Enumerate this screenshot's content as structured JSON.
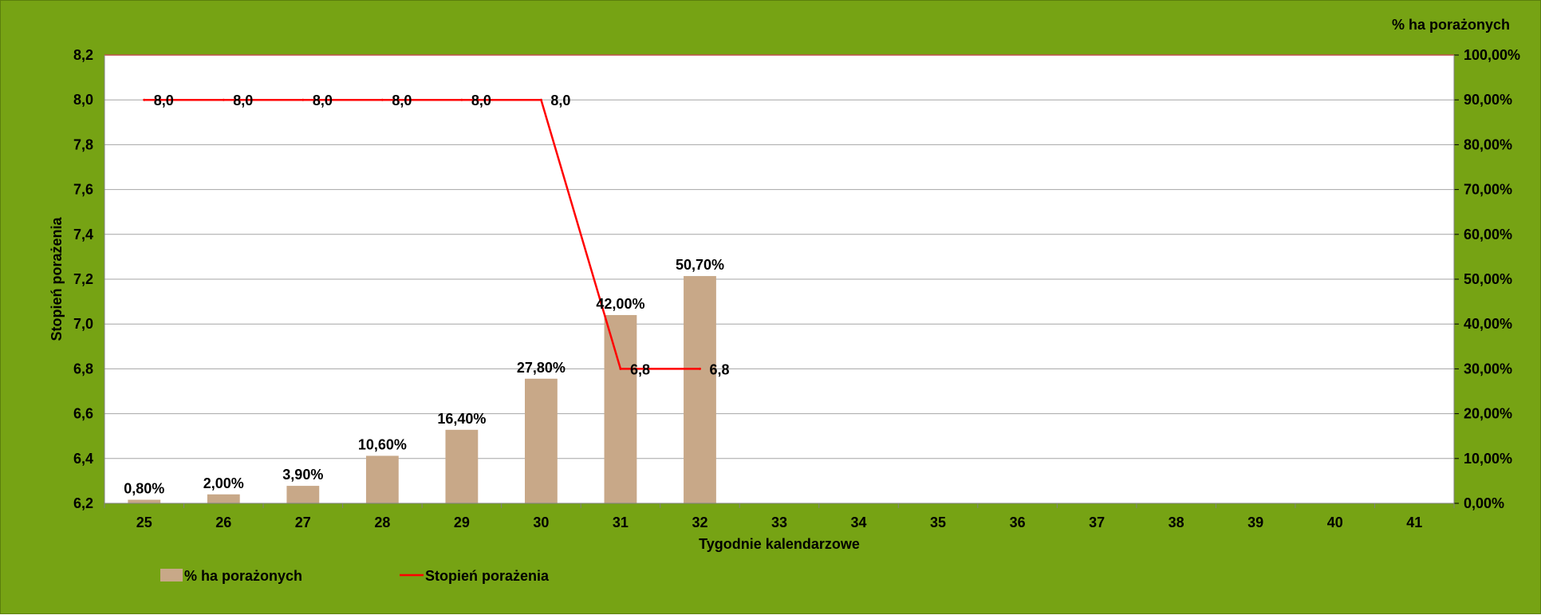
{
  "colors": {
    "frame_background": "#76a314",
    "plot_background": "#ffffff",
    "gridline": "#a6a6a6",
    "bar": "#c8a888",
    "line": "#ff0000",
    "top_border": "#c0504d"
  },
  "chart_data": {
    "type": "bar",
    "combo": "bar + line (dual axis)",
    "categories": [
      "25",
      "26",
      "27",
      "28",
      "29",
      "30",
      "31",
      "32",
      "33",
      "34",
      "35",
      "36",
      "37",
      "38",
      "39",
      "40",
      "41"
    ],
    "xlabel": "Tygodnie kalendarzowe",
    "ylabel": "Stopień porażenia",
    "ylabel_right": "% ha porażonych",
    "ylim": [
      6.2,
      8.2
    ],
    "ylim_right": [
      0,
      100
    ],
    "yticks": [
      "8,2",
      "8,0",
      "7,8",
      "7,6",
      "7,4",
      "7,2",
      "7,0",
      "6,8",
      "6,6",
      "6,4",
      "6,2"
    ],
    "yticks_right": [
      "100,00%",
      "90,00%",
      "80,00%",
      "70,00%",
      "60,00%",
      "50,00%",
      "40,00%",
      "30,00%",
      "20,00%",
      "10,00%",
      "0,00%"
    ],
    "grid": true,
    "legend_position": "bottom-left",
    "series": [
      {
        "name": "% ha porażonych",
        "type": "bar",
        "axis": "right",
        "values": [
          0.8,
          2.0,
          3.9,
          10.6,
          16.4,
          27.8,
          42.0,
          50.7,
          null,
          null,
          null,
          null,
          null,
          null,
          null,
          null,
          null
        ],
        "labels": [
          "0,80%",
          "2,00%",
          "3,90%",
          "10,60%",
          "16,40%",
          "27,80%",
          "42,00%",
          "50,70%",
          "",
          "",
          "",
          "",
          "",
          "",
          "",
          "",
          ""
        ]
      },
      {
        "name": "Stopień porażenia",
        "type": "line",
        "axis": "left",
        "values": [
          8.0,
          8.0,
          8.0,
          8.0,
          8.0,
          8.0,
          6.8,
          6.8,
          null,
          null,
          null,
          null,
          null,
          null,
          null,
          null,
          null
        ],
        "labels": [
          "8,0",
          "8,0",
          "8,0",
          "8,0",
          "8,0",
          "8,0",
          "6,8",
          "6,8",
          "",
          "",
          "",
          "",
          "",
          "",
          "",
          "",
          ""
        ]
      }
    ]
  }
}
